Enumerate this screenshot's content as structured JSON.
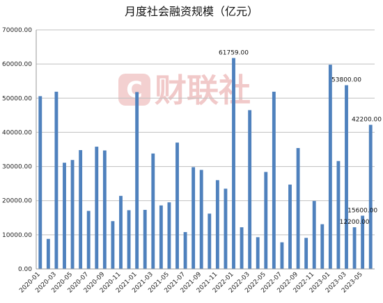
{
  "chart_data": {
    "type": "bar",
    "title": "月度社会融资规模（亿元）",
    "xlabel": "",
    "ylabel": "",
    "ylim": [
      0,
      70000
    ],
    "yticks": [
      "0.00",
      "10000.00",
      "20000.00",
      "30000.00",
      "40000.00",
      "50000.00",
      "60000.00",
      "70000.00"
    ],
    "grid": true,
    "legend": "none",
    "bar_color": "#4f81bd",
    "categories": [
      "2020-01",
      "2020-02",
      "2020-03",
      "2020-04",
      "2020-05",
      "2020-06",
      "2020-07",
      "2020-08",
      "2020-09",
      "2020-10",
      "2020-11",
      "2020-12",
      "2021-01",
      "2021-02",
      "2021-03",
      "2021-04",
      "2021-05",
      "2021-06",
      "2021-07",
      "2021-08",
      "2021-09",
      "2021-10",
      "2021-11",
      "2021-12",
      "2022-01",
      "2022-02",
      "2022-03",
      "2022-04",
      "2022-05",
      "2022-06",
      "2022-07",
      "2022-08",
      "2022-09",
      "2022-10",
      "2022-11",
      "2022-12",
      "2023-01",
      "2023-02",
      "2023-03",
      "2023-04",
      "2023-05",
      "2023-06"
    ],
    "xtick_labels": [
      "2020-01",
      "2020-03",
      "2020-05",
      "2020-07",
      "2020-09",
      "2020-11",
      "2021-01",
      "2021-03",
      "2021-05",
      "2021-07",
      "2021-09",
      "2021-11",
      "2022-01",
      "2022-03",
      "2022-05",
      "2022-07",
      "2022-09",
      "2022-11",
      "2023-01",
      "2023-03",
      "2023-05"
    ],
    "values": [
      50600,
      8800,
      51900,
      31100,
      31900,
      34800,
      17000,
      35800,
      34700,
      14000,
      21400,
      17200,
      51800,
      17300,
      33800,
      18600,
      19500,
      37000,
      10800,
      29800,
      29000,
      16200,
      26000,
      23500,
      61759,
      12200,
      46500,
      9300,
      28400,
      51900,
      7800,
      24700,
      35400,
      9100,
      19900,
      13100,
      59800,
      31600,
      53800,
      12200,
      15600,
      42200
    ],
    "data_labels": [
      {
        "index": 24,
        "text": "61759.00"
      },
      {
        "index": 38,
        "text": "53800.00"
      },
      {
        "index": 39,
        "text": "12200.00"
      },
      {
        "index": 40,
        "text": "15600.00"
      },
      {
        "index": 41,
        "text": "42200.00"
      }
    ]
  },
  "watermark": {
    "text": "财联社",
    "color": "#f1c9c9"
  }
}
